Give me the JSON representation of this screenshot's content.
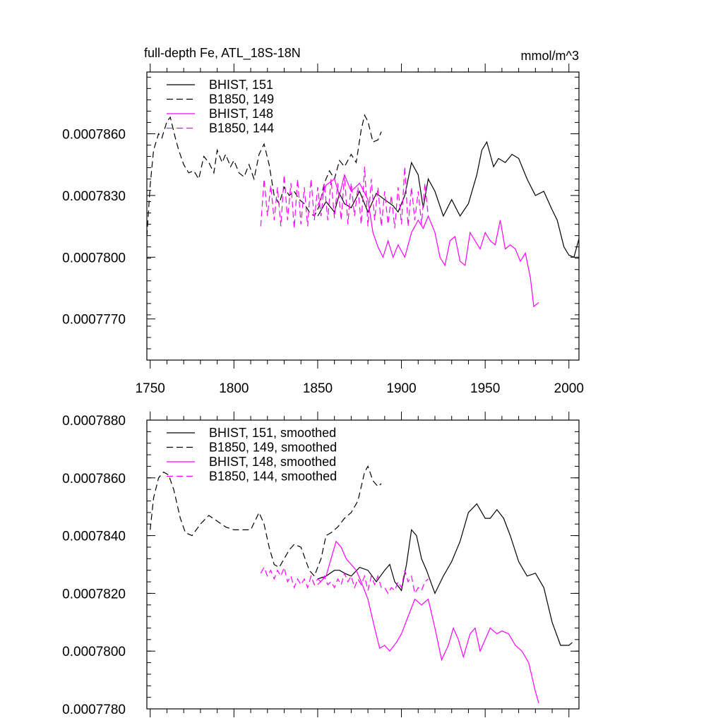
{
  "chart_data": [
    {
      "type": "line",
      "title": "full-depth Fe, ATL_18S-18N",
      "units": "mmol/m^3",
      "xlabel": "",
      "ylabel": "",
      "xlim": [
        1748,
        2006
      ],
      "ylim": [
        0.000775,
        0.000789
      ],
      "xticks": [
        1750,
        1800,
        1850,
        1900,
        1950,
        2000
      ],
      "xtick_labels": [
        "1750",
        "1800",
        "1850",
        "1900",
        "1950",
        "2000"
      ],
      "yticks": [
        0.000777,
        0.00078,
        0.000783,
        0.000786
      ],
      "ytick_labels": [
        "0.0007770",
        "0.0007800",
        "0.0007830",
        "0.0007860"
      ],
      "legend_position": "top-left",
      "series": [
        {
          "name": "BHIST, 151",
          "color": "#000000",
          "dash": "solid",
          "x": [
            1850,
            1855,
            1860,
            1863,
            1866,
            1870,
            1875,
            1880,
            1885,
            1890,
            1895,
            1898,
            1902,
            1906,
            1910,
            1913,
            1916,
            1920,
            1925,
            1930,
            1935,
            1940,
            1945,
            1948,
            1951,
            1955,
            1958,
            1962,
            1966,
            1970,
            1975,
            1980,
            1985,
            1990,
            1993,
            1997,
            2000,
            2003,
            2006
          ],
          "y": [
            0.000782,
            0.0007827,
            0.0007822,
            0.0007831,
            0.0007826,
            0.0007824,
            0.0007832,
            0.0007822,
            0.0007831,
            0.0007828,
            0.0007825,
            0.0007822,
            0.000783,
            0.0007846,
            0.000784,
            0.0007824,
            0.0007838,
            0.0007832,
            0.000782,
            0.0007828,
            0.000782,
            0.0007826,
            0.000784,
            0.0007852,
            0.0007856,
            0.0007844,
            0.0007848,
            0.0007846,
            0.000785,
            0.0007848,
            0.0007838,
            0.000783,
            0.0007832,
            0.0007823,
            0.0007818,
            0.0007805,
            0.0007801,
            0.00078,
            0.0007809
          ]
        },
        {
          "name": "B1850, 149",
          "color": "#000000",
          "dash": "dashed",
          "x": [
            1748,
            1750,
            1752,
            1755,
            1757,
            1760,
            1762,
            1765,
            1767,
            1770,
            1773,
            1776,
            1779,
            1782,
            1785,
            1788,
            1790,
            1793,
            1795,
            1798,
            1800,
            1803,
            1806,
            1809,
            1812,
            1815,
            1818,
            1821,
            1824,
            1827,
            1830,
            1833,
            1836,
            1839,
            1842,
            1845,
            1848,
            1851,
            1854,
            1857,
            1860,
            1863,
            1866,
            1870,
            1873,
            1876,
            1878,
            1880,
            1883,
            1886,
            1888
          ],
          "y": [
            0.000781,
            0.0007835,
            0.0007852,
            0.000786,
            0.0007858,
            0.0007866,
            0.0007868,
            0.0007858,
            0.0007852,
            0.0007845,
            0.0007841,
            0.0007842,
            0.0007838,
            0.0007849,
            0.0007846,
            0.0007841,
            0.0007852,
            0.0007846,
            0.000785,
            0.0007844,
            0.0007847,
            0.0007841,
            0.0007839,
            0.0007845,
            0.0007838,
            0.000785,
            0.0007855,
            0.0007845,
            0.000783,
            0.0007826,
            0.0007834,
            0.000783,
            0.0007832,
            0.0007828,
            0.0007826,
            0.0007822,
            0.000782,
            0.0007825,
            0.0007836,
            0.0007842,
            0.0007838,
            0.0007847,
            0.0007844,
            0.000785,
            0.0007846,
            0.0007862,
            0.0007869,
            0.0007866,
            0.0007856,
            0.0007857,
            0.0007861
          ]
        },
        {
          "name": "BHIST, 148",
          "color": "#ff00ff",
          "dash": "solid",
          "x": [
            1850,
            1855,
            1860,
            1863,
            1866,
            1870,
            1875,
            1880,
            1883,
            1886,
            1889,
            1892,
            1895,
            1898,
            1902,
            1906,
            1910,
            1913,
            1916,
            1920,
            1923,
            1926,
            1929,
            1932,
            1935,
            1938,
            1941,
            1944,
            1947,
            1950,
            1953,
            1956,
            1959,
            1962,
            1965,
            1968,
            1971,
            1974,
            1977,
            1979,
            1982
          ],
          "y": [
            0.0007825,
            0.0007835,
            0.0007838,
            0.000783,
            0.000784,
            0.0007832,
            0.0007836,
            0.0007828,
            0.0007812,
            0.0007805,
            0.00078,
            0.0007808,
            0.00078,
            0.0007806,
            0.00078,
            0.0007812,
            0.0007818,
            0.0007814,
            0.000782,
            0.0007812,
            0.00078,
            0.0007796,
            0.0007808,
            0.000781,
            0.0007798,
            0.0007796,
            0.0007812,
            0.0007808,
            0.0007804,
            0.0007812,
            0.0007808,
            0.0007806,
            0.0007818,
            0.0007804,
            0.0007806,
            0.0007804,
            0.0007798,
            0.0007802,
            0.000779,
            0.0007776,
            0.0007778
          ]
        },
        {
          "name": "B1850, 144",
          "color": "#ff00ff",
          "dash": "dashed",
          "x": [
            1816,
            1818,
            1820,
            1822,
            1824,
            1826,
            1828,
            1830,
            1832,
            1834,
            1836,
            1838,
            1840,
            1842,
            1844,
            1846,
            1848,
            1850,
            1852,
            1854,
            1856,
            1858,
            1860,
            1862,
            1864,
            1866,
            1868,
            1870,
            1872,
            1874,
            1876,
            1878,
            1880,
            1882,
            1884,
            1886,
            1888,
            1890,
            1892,
            1894,
            1896,
            1898,
            1900,
            1902,
            1904,
            1906,
            1908,
            1910,
            1912,
            1914,
            1916
          ],
          "y": [
            0.0007815,
            0.0007838,
            0.000782,
            0.0007835,
            0.0007818,
            0.0007834,
            0.0007815,
            0.000784,
            0.0007818,
            0.0007836,
            0.0007814,
            0.0007838,
            0.0007816,
            0.0007834,
            0.0007815,
            0.0007838,
            0.0007818,
            0.0007834,
            0.000782,
            0.0007836,
            0.0007818,
            0.0007838,
            0.0007819,
            0.0007836,
            0.0007818,
            0.000784,
            0.0007816,
            0.0007836,
            0.000782,
            0.0007834,
            0.0007816,
            0.0007844,
            0.0007815,
            0.0007838,
            0.0007818,
            0.0007834,
            0.0007815,
            0.0007832,
            0.0007816,
            0.000783,
            0.0007814,
            0.0007834,
            0.0007816,
            0.0007844,
            0.0007815,
            0.0007834,
            0.0007818,
            0.0007832,
            0.0007816,
            0.0007836,
            0.000782
          ]
        }
      ]
    },
    {
      "type": "line",
      "title": "",
      "xlabel": "",
      "ylabel": "",
      "xlim": [
        1748,
        2006
      ],
      "ylim": [
        0.000778,
        0.000788
      ],
      "xticks": [
        1750,
        1800,
        1850,
        1900,
        1950,
        2000
      ],
      "yticks": [
        0.000778,
        0.00078,
        0.000782,
        0.000784,
        0.000786,
        0.000788
      ],
      "ytick_labels": [
        "0.0007780",
        "0.0007800",
        "0.0007820",
        "0.0007840",
        "0.0007860",
        "0.0007880"
      ],
      "legend_position": "top-left",
      "series": [
        {
          "name": "BHIST, 151, smoothed",
          "color": "#000000",
          "dash": "solid",
          "x": [
            1850,
            1855,
            1860,
            1863,
            1866,
            1870,
            1875,
            1880,
            1885,
            1890,
            1893,
            1896,
            1900,
            1903,
            1906,
            1909,
            1912,
            1915,
            1920,
            1925,
            1930,
            1935,
            1940,
            1945,
            1950,
            1953,
            1957,
            1961,
            1965,
            1970,
            1975,
            1980,
            1985,
            1990,
            1995,
            2000,
            2002
          ],
          "y": [
            0.0007825,
            0.0007826,
            0.0007828,
            0.0007828,
            0.0007827,
            0.0007826,
            0.0007829,
            0.0007828,
            0.0007824,
            0.0007828,
            0.000783,
            0.0007824,
            0.0007821,
            0.000783,
            0.0007842,
            0.000784,
            0.0007832,
            0.0007828,
            0.000782,
            0.0007826,
            0.0007831,
            0.0007838,
            0.0007848,
            0.0007851,
            0.0007846,
            0.0007846,
            0.0007849,
            0.0007846,
            0.000784,
            0.0007831,
            0.0007826,
            0.0007827,
            0.0007822,
            0.000781,
            0.0007802,
            0.0007802,
            0.0007803
          ]
        },
        {
          "name": "B1850, 149, smoothed",
          "color": "#000000",
          "dash": "dashed",
          "x": [
            1750,
            1752,
            1755,
            1758,
            1761,
            1764,
            1768,
            1771,
            1775,
            1780,
            1785,
            1790,
            1795,
            1800,
            1805,
            1810,
            1815,
            1818,
            1821,
            1824,
            1827,
            1830,
            1833,
            1836,
            1840,
            1845,
            1848,
            1852,
            1855,
            1858,
            1862,
            1866,
            1870,
            1874,
            1878,
            1880,
            1883,
            1886,
            1888
          ],
          "y": [
            0.0007842,
            0.0007853,
            0.000786,
            0.0007862,
            0.0007861,
            0.0007856,
            0.0007846,
            0.0007841,
            0.000784,
            0.0007844,
            0.0007847,
            0.0007845,
            0.0007843,
            0.0007842,
            0.0007842,
            0.0007842,
            0.0007848,
            0.0007844,
            0.0007836,
            0.000783,
            0.0007829,
            0.0007832,
            0.0007835,
            0.0007837,
            0.0007836,
            0.0007828,
            0.0007826,
            0.0007832,
            0.000784,
            0.0007841,
            0.0007843,
            0.0007846,
            0.0007848,
            0.0007852,
            0.0007862,
            0.0007864,
            0.0007859,
            0.0007857,
            0.0007858
          ]
        },
        {
          "name": "BHIST, 148, smoothed",
          "color": "#ff00ff",
          "dash": "solid",
          "x": [
            1850,
            1855,
            1858,
            1861,
            1864,
            1867,
            1870,
            1873,
            1876,
            1880,
            1884,
            1887,
            1890,
            1893,
            1897,
            1900,
            1904,
            1908,
            1912,
            1916,
            1920,
            1924,
            1928,
            1931,
            1934,
            1937,
            1941,
            1944,
            1947,
            1950,
            1953,
            1957,
            1960,
            1964,
            1968,
            1972,
            1976,
            1980,
            1982
          ],
          "y": [
            0.0007823,
            0.0007826,
            0.0007832,
            0.0007838,
            0.0007836,
            0.0007832,
            0.000783,
            0.0007828,
            0.0007824,
            0.0007818,
            0.0007808,
            0.0007801,
            0.0007802,
            0.00078,
            0.0007803,
            0.0007806,
            0.0007812,
            0.0007818,
            0.0007816,
            0.0007818,
            0.0007808,
            0.0007797,
            0.0007802,
            0.0007808,
            0.0007804,
            0.0007798,
            0.0007806,
            0.0007808,
            0.00078,
            0.0007804,
            0.0007808,
            0.0007806,
            0.0007807,
            0.0007806,
            0.0007802,
            0.00078,
            0.0007796,
            0.0007786,
            0.0007782
          ]
        },
        {
          "name": "B1850, 144, smoothed",
          "color": "#ff00ff",
          "dash": "dashed",
          "x": [
            1816,
            1818,
            1820,
            1822,
            1824,
            1826,
            1828,
            1830,
            1832,
            1834,
            1836,
            1838,
            1840,
            1842,
            1844,
            1846,
            1848,
            1850,
            1852,
            1854,
            1856,
            1858,
            1860,
            1862,
            1864,
            1866,
            1868,
            1870,
            1872,
            1874,
            1876,
            1878,
            1880,
            1882,
            1884,
            1886,
            1888,
            1890,
            1892,
            1894,
            1896,
            1898,
            1900,
            1902,
            1904,
            1906,
            1908,
            1910,
            1912,
            1914,
            1916
          ],
          "y": [
            0.0007827,
            0.0007829,
            0.0007826,
            0.0007828,
            0.0007825,
            0.0007828,
            0.0007826,
            0.0007829,
            0.0007824,
            0.0007826,
            0.0007822,
            0.0007825,
            0.0007823,
            0.0007825,
            0.0007822,
            0.0007826,
            0.0007823,
            0.0007825,
            0.0007824,
            0.0007826,
            0.0007823,
            0.0007824,
            0.0007822,
            0.0007825,
            0.0007823,
            0.0007827,
            0.0007824,
            0.0007826,
            0.0007822,
            0.0007825,
            0.0007823,
            0.0007826,
            0.0007821,
            0.0007826,
            0.0007823,
            0.0007826,
            0.0007822,
            0.0007822,
            0.000782,
            0.0007822,
            0.0007821,
            0.0007824,
            0.0007822,
            0.0007828,
            0.0007824,
            0.0007826,
            0.000782,
            0.0007822,
            0.0007821,
            0.0007824,
            0.0007825
          ]
        }
      ]
    }
  ]
}
